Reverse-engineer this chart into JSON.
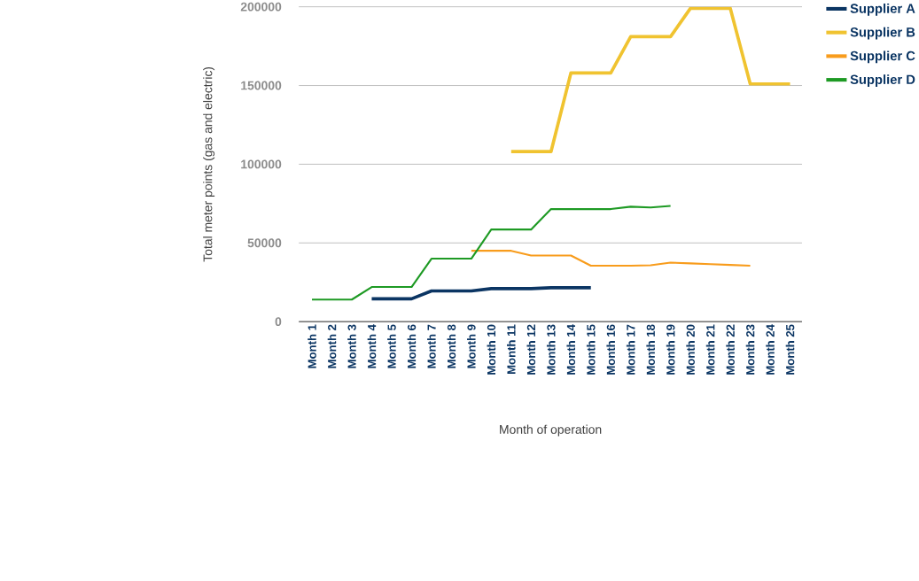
{
  "chart_data": {
    "type": "line",
    "xlabel": "Month of operation",
    "ylabel": "Total meter points (gas and electric)",
    "categories": [
      "Month 1",
      "Month 2",
      "Month 3",
      "Month 4",
      "Month 5",
      "Month 6",
      "Month 7",
      "Month 8",
      "Month 9",
      "Month 10",
      "Month 11",
      "Month 12",
      "Month 13",
      "Month 14",
      "Month 15",
      "Month 16",
      "Month 17",
      "Month 18",
      "Month 19",
      "Month 20",
      "Month 21",
      "Month 22",
      "Month 23",
      "Month 24",
      "Month 25"
    ],
    "series": [
      {
        "name": "Supplier A",
        "color": "#0b3563",
        "values": [
          null,
          null,
          null,
          14500,
          14500,
          14500,
          19500,
          19500,
          19500,
          21000,
          21000,
          21000,
          21500,
          21500,
          21500,
          null,
          null,
          null,
          null,
          null,
          null,
          null,
          null,
          null,
          null
        ]
      },
      {
        "name": "Supplier B",
        "color": "#f0c330",
        "values": [
          null,
          null,
          null,
          null,
          null,
          null,
          null,
          null,
          null,
          null,
          108000,
          108000,
          108000,
          158000,
          158000,
          158000,
          181000,
          181000,
          181000,
          199000,
          199000,
          199000,
          151000,
          151000,
          151000
        ]
      },
      {
        "name": "Supplier C",
        "color": "#f89c1c",
        "values": [
          null,
          null,
          null,
          null,
          null,
          null,
          null,
          null,
          45000,
          45000,
          45000,
          42000,
          42000,
          42000,
          35500,
          35500,
          35500,
          35800,
          37500,
          37000,
          36500,
          36000,
          35500,
          null,
          null
        ]
      },
      {
        "name": "Supplier D",
        "color": "#1e9a24",
        "values": [
          14000,
          14000,
          14000,
          22000,
          22000,
          22000,
          40000,
          40000,
          40000,
          58500,
          58500,
          58500,
          71500,
          71500,
          71500,
          71500,
          73000,
          72500,
          73500,
          null,
          null,
          null,
          null,
          null,
          null
        ]
      }
    ],
    "ylim": [
      0,
      200000
    ],
    "yticks": [
      0,
      50000,
      100000,
      150000,
      200000
    ],
    "grid": "y",
    "legend": "right",
    "marker": "none",
    "line_style": "solid"
  }
}
